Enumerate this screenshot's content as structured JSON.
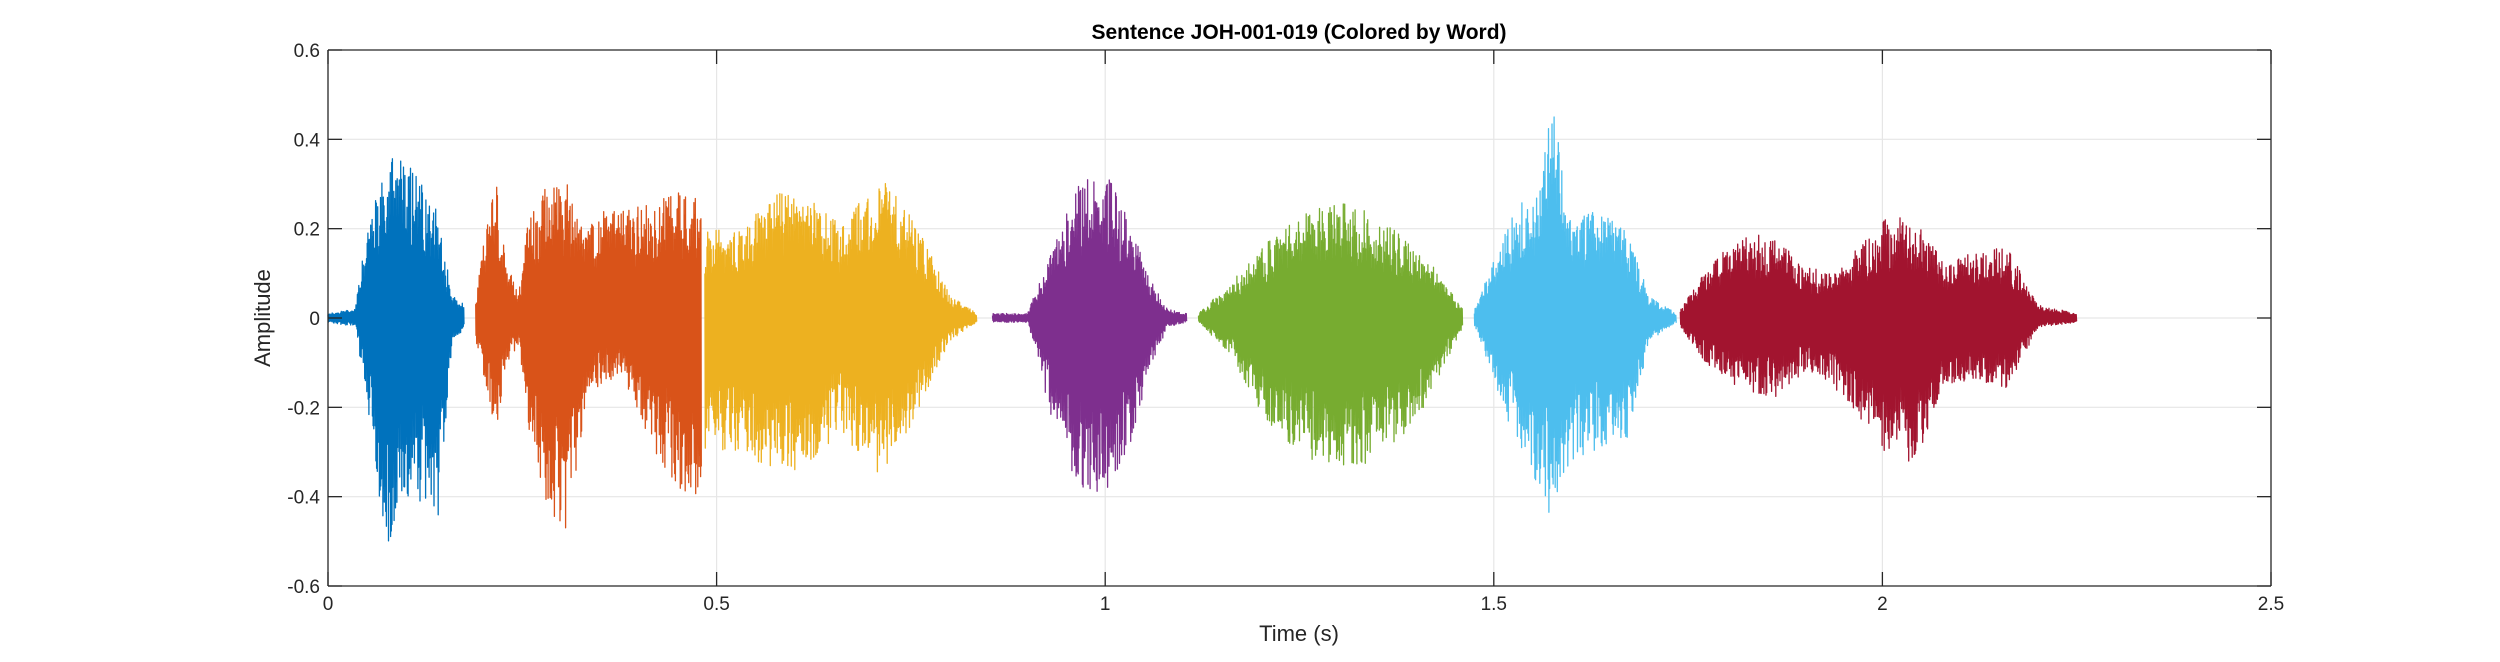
{
  "chart_data": {
    "type": "line",
    "title": "Sentence JOH-001-019 (Colored by Word)",
    "xlabel": "Time (s)",
    "ylabel": "Amplitude",
    "xlim": [
      0,
      2.5
    ],
    "ylim": [
      -0.6,
      0.6
    ],
    "x_ticks": [
      0,
      0.5,
      1,
      1.5,
      2,
      2.5
    ],
    "x_tick_labels": [
      "0",
      "0.5",
      "1",
      "1.5",
      "2",
      "2.5"
    ],
    "y_ticks": [
      -0.6,
      -0.4,
      -0.2,
      0,
      0.2,
      0.4,
      0.6
    ],
    "y_tick_labels": [
      "-0.6",
      "-0.4",
      "-0.2",
      "0",
      "0.2",
      "0.4",
      "0.6"
    ],
    "grid": true,
    "legend": "none",
    "series": [
      {
        "color": "#0072BD",
        "start": 0.0,
        "end": 0.175,
        "envelope": {
          "t": [
            0.0,
            0.035,
            0.05,
            0.075,
            0.095,
            0.12,
            0.14,
            0.16,
            0.175
          ],
          "max": [
            0.01,
            0.02,
            0.2,
            0.36,
            0.38,
            0.3,
            0.24,
            0.05,
            0.03
          ],
          "min": [
            -0.01,
            -0.02,
            -0.2,
            -0.52,
            -0.42,
            -0.42,
            -0.47,
            -0.05,
            -0.03
          ]
        }
      },
      {
        "color": "#D95319",
        "start": 0.19,
        "end": 0.48,
        "envelope": {
          "t": [
            0.19,
            0.215,
            0.23,
            0.245,
            0.26,
            0.285,
            0.31,
            0.33,
            0.355,
            0.38,
            0.42,
            0.45,
            0.48
          ],
          "max": [
            0.05,
            0.33,
            0.13,
            0.05,
            0.25,
            0.3,
            0.3,
            0.2,
            0.24,
            0.24,
            0.26,
            0.28,
            0.29
          ],
          "min": [
            -0.05,
            -0.26,
            -0.1,
            -0.06,
            -0.3,
            -0.45,
            -0.48,
            -0.2,
            -0.14,
            -0.14,
            -0.3,
            -0.38,
            -0.41
          ]
        }
      },
      {
        "color": "#EDB120",
        "start": 0.485,
        "end": 0.835,
        "envelope": {
          "t": [
            0.485,
            0.53,
            0.58,
            0.62,
            0.66,
            0.7,
            0.72,
            0.76,
            0.8,
            0.835
          ],
          "max": [
            0.2,
            0.2,
            0.28,
            0.27,
            0.21,
            0.3,
            0.31,
            0.2,
            0.05,
            0.01
          ],
          "min": [
            -0.3,
            -0.3,
            -0.35,
            -0.33,
            -0.25,
            -0.36,
            -0.37,
            -0.2,
            -0.05,
            -0.01
          ]
        }
      },
      {
        "color": "#7E2F8E",
        "start": 0.855,
        "end": 1.105,
        "envelope": {
          "t": [
            0.855,
            0.9,
            0.93,
            0.965,
            1.0,
            1.03,
            1.06,
            1.08,
            1.105
          ],
          "max": [
            0.01,
            0.01,
            0.15,
            0.3,
            0.33,
            0.22,
            0.08,
            0.02,
            0.01
          ],
          "min": [
            -0.01,
            -0.01,
            -0.22,
            -0.38,
            -0.4,
            -0.3,
            -0.1,
            -0.02,
            -0.01
          ]
        }
      },
      {
        "color": "#77AC30",
        "start": 1.12,
        "end": 1.46,
        "envelope": {
          "t": [
            1.12,
            1.16,
            1.2,
            1.26,
            1.32,
            1.38,
            1.42,
            1.46
          ],
          "max": [
            0.01,
            0.08,
            0.16,
            0.24,
            0.26,
            0.19,
            0.12,
            0.02
          ],
          "min": [
            -0.01,
            -0.08,
            -0.22,
            -0.32,
            -0.34,
            -0.28,
            -0.17,
            -0.02
          ]
        }
      },
      {
        "color": "#4DBEEE",
        "start": 1.475,
        "end": 1.735,
        "envelope": {
          "t": [
            1.475,
            1.5,
            1.53,
            1.56,
            1.575,
            1.6,
            1.63,
            1.67,
            1.7,
            1.735
          ],
          "max": [
            0.02,
            0.13,
            0.25,
            0.3,
            0.48,
            0.22,
            0.24,
            0.2,
            0.05,
            0.01
          ],
          "min": [
            -0.02,
            -0.15,
            -0.3,
            -0.38,
            -0.48,
            -0.32,
            -0.3,
            -0.28,
            -0.05,
            -0.01
          ]
        }
      },
      {
        "color": "#A2142F",
        "start": 1.74,
        "end": 2.25,
        "envelope": {
          "t": [
            1.74,
            1.77,
            1.8,
            1.83,
            1.86,
            1.9,
            1.93,
            1.96,
            2.0,
            2.04,
            2.08,
            2.12,
            2.16,
            2.2,
            2.25
          ],
          "max": [
            0.02,
            0.1,
            0.16,
            0.19,
            0.18,
            0.12,
            0.1,
            0.14,
            0.22,
            0.23,
            0.12,
            0.15,
            0.16,
            0.03,
            0.01
          ],
          "min": [
            -0.02,
            -0.1,
            -0.14,
            -0.17,
            -0.18,
            -0.12,
            -0.14,
            -0.2,
            -0.3,
            -0.33,
            -0.15,
            -0.14,
            -0.16,
            -0.02,
            -0.01
          ]
        }
      }
    ]
  }
}
